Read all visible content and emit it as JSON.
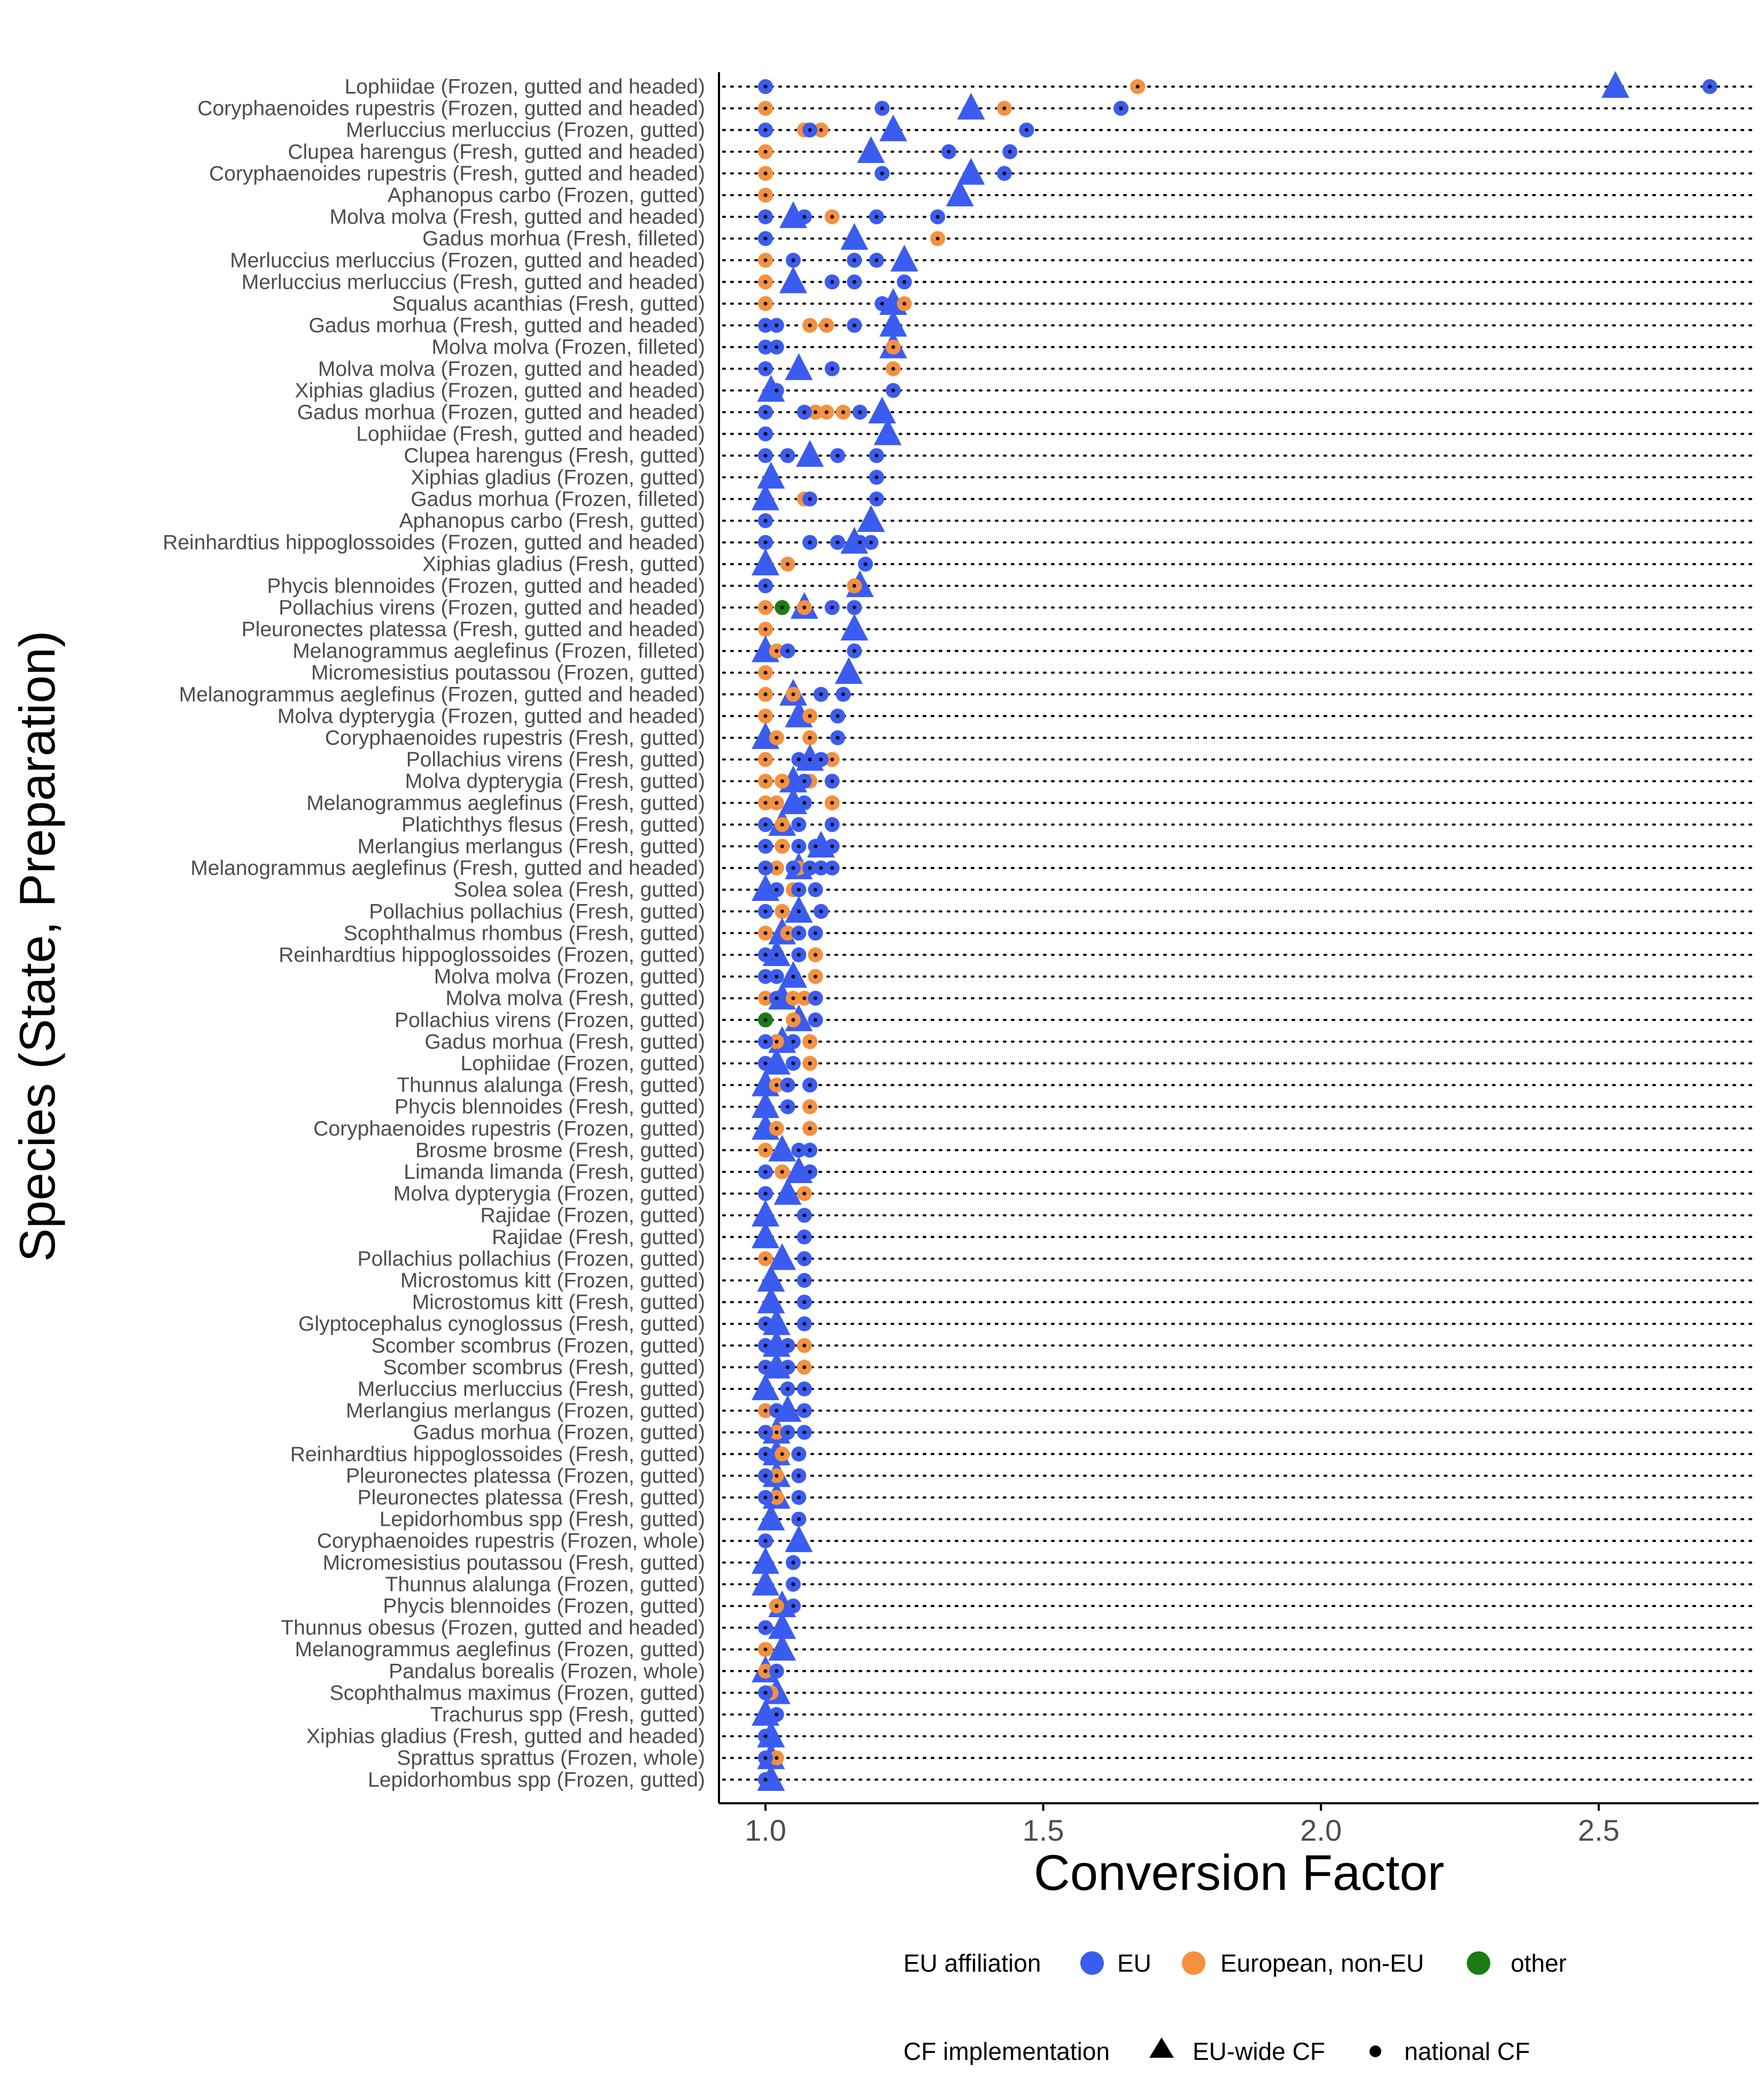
{
  "chart_data": {
    "type": "scatter",
    "xlabel": "Conversion Factor",
    "ylabel": "Species (State, Preparation)",
    "xlim": [
      0.92,
      2.78
    ],
    "x_ticks": [
      1.0,
      1.5,
      2.0,
      2.5
    ],
    "x_tick_labels": [
      "1.0",
      "1.5",
      "2.0",
      "2.5"
    ],
    "grid": "dotted horizontal line per category",
    "colors": {
      "EU": "#3b5cf0",
      "European, non-EU": "#f5913e",
      "other": "#1a7d10",
      "ink": "#000000"
    },
    "legend": {
      "position": "bottom",
      "color_title": "EU affiliation",
      "color_items": [
        "EU",
        "European, non-EU",
        "other"
      ],
      "shape_title": "CF implementation",
      "shape_items": [
        {
          "label": "EU-wide CF",
          "shape": "triangle"
        },
        {
          "label": "national CF",
          "shape": "dot"
        }
      ]
    },
    "categories": [
      {
        "label": "Lophiidae (Frozen, gutted and headed)",
        "eu": [
          1.0,
          2.7
        ],
        "noneu": [
          1.67
        ],
        "other": [],
        "euwide": [
          2.53
        ]
      },
      {
        "label": "Coryphaenoides rupestris (Frozen, gutted and headed)",
        "eu": [
          1.21,
          1.64
        ],
        "noneu": [
          1.0,
          1.43
        ],
        "other": [],
        "euwide": [
          1.37
        ]
      },
      {
        "label": "Merluccius merluccius (Frozen, gutted)",
        "eu": [
          1.0,
          1.08,
          1.47
        ],
        "noneu": [
          1.07,
          1.1
        ],
        "other": [],
        "euwide": [
          1.23
        ]
      },
      {
        "label": "Clupea harengus (Fresh, gutted and headed)",
        "eu": [
          1.33,
          1.44
        ],
        "noneu": [
          1.0
        ],
        "other": [],
        "euwide": [
          1.19
        ]
      },
      {
        "label": "Coryphaenoides rupestris (Fresh, gutted and headed)",
        "eu": [
          1.21,
          1.43
        ],
        "noneu": [
          1.0
        ],
        "other": [],
        "euwide": [
          1.37
        ]
      },
      {
        "label": "Aphanopus carbo (Frozen, gutted)",
        "eu": [],
        "noneu": [
          1.0
        ],
        "other": [],
        "euwide": [
          1.35
        ]
      },
      {
        "label": "Molva molva (Fresh, gutted and headed)",
        "eu": [
          1.0,
          1.07,
          1.2,
          1.31
        ],
        "noneu": [
          1.12
        ],
        "other": [],
        "euwide": [
          1.05
        ]
      },
      {
        "label": "Gadus morhua (Fresh, filleted)",
        "eu": [
          1.0
        ],
        "noneu": [
          1.31
        ],
        "other": [],
        "euwide": [
          1.16
        ]
      },
      {
        "label": "Merluccius merluccius (Frozen, gutted and headed)",
        "eu": [
          1.05,
          1.16,
          1.2
        ],
        "noneu": [
          1.0
        ],
        "other": [],
        "euwide": [
          1.25
        ]
      },
      {
        "label": "Merluccius merluccius (Fresh, gutted and headed)",
        "eu": [
          1.12,
          1.16,
          1.25
        ],
        "noneu": [
          1.0
        ],
        "other": [],
        "euwide": [
          1.05
        ]
      },
      {
        "label": "Squalus acanthias (Fresh, gutted)",
        "eu": [
          1.21
        ],
        "noneu": [
          1.0,
          1.25
        ],
        "other": [],
        "euwide": [
          1.23
        ]
      },
      {
        "label": "Gadus morhua (Fresh, gutted and headed)",
        "eu": [
          1.0,
          1.02,
          1.16
        ],
        "noneu": [
          1.08,
          1.11
        ],
        "other": [],
        "euwide": [
          1.23
        ]
      },
      {
        "label": "Molva molva (Frozen, filleted)",
        "eu": [
          1.0,
          1.02
        ],
        "noneu": [
          1.23
        ],
        "other": [],
        "euwide": [
          1.23
        ]
      },
      {
        "label": "Molva molva (Frozen, gutted and headed)",
        "eu": [
          1.0,
          1.12
        ],
        "noneu": [
          1.23
        ],
        "other": [],
        "euwide": [
          1.06
        ]
      },
      {
        "label": "Xiphias gladius (Frozen, gutted and headed)",
        "eu": [
          1.02,
          1.23
        ],
        "noneu": [],
        "other": [],
        "euwide": [
          1.01
        ]
      },
      {
        "label": "Gadus morhua (Frozen, gutted and headed)",
        "eu": [
          1.0,
          1.07,
          1.17
        ],
        "noneu": [
          1.09,
          1.11,
          1.14
        ],
        "other": [],
        "euwide": [
          1.21
        ]
      },
      {
        "label": "Lophiidae (Fresh, gutted and headed)",
        "eu": [
          1.0
        ],
        "noneu": [],
        "other": [],
        "euwide": [
          1.22
        ]
      },
      {
        "label": "Clupea harengus (Fresh, gutted)",
        "eu": [
          1.0,
          1.04,
          1.13,
          1.2
        ],
        "noneu": [],
        "other": [],
        "euwide": [
          1.08
        ]
      },
      {
        "label": "Xiphias gladius (Frozen, gutted)",
        "eu": [
          1.2
        ],
        "noneu": [],
        "other": [],
        "euwide": [
          1.01
        ]
      },
      {
        "label": "Gadus morhua (Frozen, filleted)",
        "eu": [
          1.08,
          1.2
        ],
        "noneu": [
          1.07
        ],
        "other": [],
        "euwide": [
          1.0
        ]
      },
      {
        "label": "Aphanopus carbo (Fresh, gutted)",
        "eu": [
          1.0
        ],
        "noneu": [],
        "other": [],
        "euwide": [
          1.19
        ]
      },
      {
        "label": "Reinhardtius hippoglossoides (Frozen, gutted and headed)",
        "eu": [
          1.0,
          1.08,
          1.13,
          1.17,
          1.19
        ],
        "noneu": [],
        "other": [],
        "euwide": [
          1.16
        ]
      },
      {
        "label": "Xiphias gladius (Fresh, gutted)",
        "eu": [
          1.18
        ],
        "noneu": [
          1.04
        ],
        "other": [],
        "euwide": [
          1.0
        ]
      },
      {
        "label": "Phycis blennoides (Frozen, gutted and headed)",
        "eu": [
          1.0
        ],
        "noneu": [
          1.16
        ],
        "other": [],
        "euwide": [
          1.17
        ]
      },
      {
        "label": "Pollachius virens (Frozen, gutted and headed)",
        "eu": [
          1.12,
          1.16
        ],
        "noneu": [
          1.0,
          1.07
        ],
        "other": [
          1.03
        ],
        "euwide": [
          1.07
        ]
      },
      {
        "label": "Pleuronectes platessa (Fresh, gutted and headed)",
        "eu": [],
        "noneu": [
          1.0
        ],
        "other": [],
        "euwide": [
          1.16
        ]
      },
      {
        "label": "Melanogrammus aeglefinus (Frozen, filleted)",
        "eu": [
          1.04,
          1.16
        ],
        "noneu": [
          1.02
        ],
        "other": [],
        "euwide": [
          1.0
        ]
      },
      {
        "label": "Micromesistius poutassou (Frozen, gutted)",
        "eu": [],
        "noneu": [
          1.0
        ],
        "other": [],
        "euwide": [
          1.15
        ]
      },
      {
        "label": "Melanogrammus aeglefinus (Frozen, gutted and headed)",
        "eu": [
          1.1,
          1.14
        ],
        "noneu": [
          1.0,
          1.05
        ],
        "other": [],
        "euwide": [
          1.05
        ]
      },
      {
        "label": "Molva dypterygia (Frozen, gutted and headed)",
        "eu": [
          1.13
        ],
        "noneu": [
          1.0,
          1.08
        ],
        "other": [],
        "euwide": [
          1.06
        ]
      },
      {
        "label": "Coryphaenoides rupestris (Fresh, gutted)",
        "eu": [
          1.13
        ],
        "noneu": [
          1.02,
          1.08
        ],
        "other": [],
        "euwide": [
          1.0
        ]
      },
      {
        "label": "Pollachius virens (Fresh, gutted)",
        "eu": [
          1.06,
          1.08,
          1.1
        ],
        "noneu": [
          1.0,
          1.12
        ],
        "other": [],
        "euwide": [
          1.08
        ]
      },
      {
        "label": "Molva dypterygia (Fresh, gutted)",
        "eu": [
          1.07,
          1.12
        ],
        "noneu": [
          1.0,
          1.03,
          1.08
        ],
        "other": [],
        "euwide": [
          1.05
        ]
      },
      {
        "label": "Melanogrammus aeglefinus (Fresh, gutted)",
        "eu": [
          1.07
        ],
        "noneu": [
          1.0,
          1.02,
          1.12
        ],
        "other": [],
        "euwide": [
          1.05
        ]
      },
      {
        "label": "Platichthys flesus (Fresh, gutted)",
        "eu": [
          1.0,
          1.06,
          1.12
        ],
        "noneu": [
          1.03
        ],
        "other": [],
        "euwide": [
          1.03
        ]
      },
      {
        "label": "Merlangius merlangus (Fresh, gutted)",
        "eu": [
          1.0,
          1.06,
          1.09,
          1.12
        ],
        "noneu": [
          1.03
        ],
        "other": [],
        "euwide": [
          1.1
        ]
      },
      {
        "label": "Melanogrammus aeglefinus (Fresh, gutted and headed)",
        "eu": [
          1.0,
          1.05,
          1.08,
          1.1,
          1.12
        ],
        "noneu": [
          1.02,
          1.06
        ],
        "other": [],
        "euwide": [
          1.06
        ]
      },
      {
        "label": "Solea solea (Fresh, gutted)",
        "eu": [
          1.02,
          1.06,
          1.09
        ],
        "noneu": [
          1.05
        ],
        "other": [],
        "euwide": [
          1.0
        ]
      },
      {
        "label": "Pollachius pollachius (Fresh, gutted)",
        "eu": [
          1.0,
          1.06,
          1.1
        ],
        "noneu": [
          1.03
        ],
        "other": [],
        "euwide": [
          1.06
        ]
      },
      {
        "label": "Scophthalmus rhombus (Fresh, gutted)",
        "eu": [
          1.06,
          1.09
        ],
        "noneu": [
          1.0,
          1.04
        ],
        "other": [],
        "euwide": [
          1.03
        ]
      },
      {
        "label": "Reinhardtius hippoglossoides (Frozen, gutted)",
        "eu": [
          1.0,
          1.02,
          1.06
        ],
        "noneu": [
          1.09
        ],
        "other": [],
        "euwide": [
          1.02
        ]
      },
      {
        "label": "Molva molva (Frozen, gutted)",
        "eu": [
          1.0,
          1.02,
          1.05
        ],
        "noneu": [
          1.09
        ],
        "other": [],
        "euwide": [
          1.05
        ]
      },
      {
        "label": "Molva molva (Fresh, gutted)",
        "eu": [
          1.02,
          1.09
        ],
        "noneu": [
          1.0,
          1.05,
          1.07
        ],
        "other": [],
        "euwide": [
          1.03
        ]
      },
      {
        "label": "Pollachius virens (Frozen, gutted)",
        "eu": [
          1.09
        ],
        "noneu": [
          1.05
        ],
        "other": [
          1.0
        ],
        "euwide": [
          1.06
        ]
      },
      {
        "label": "Gadus morhua (Fresh, gutted)",
        "eu": [
          1.0,
          1.05
        ],
        "noneu": [
          1.02,
          1.08
        ],
        "other": [],
        "euwide": [
          1.03
        ]
      },
      {
        "label": "Lophiidae (Frozen, gutted)",
        "eu": [
          1.0,
          1.05
        ],
        "noneu": [
          1.08
        ],
        "other": [],
        "euwide": [
          1.02
        ]
      },
      {
        "label": "Thunnus alalunga (Fresh, gutted)",
        "eu": [
          1.04,
          1.08
        ],
        "noneu": [
          1.02
        ],
        "other": [],
        "euwide": [
          1.0
        ]
      },
      {
        "label": "Phycis blennoides (Fresh, gutted)",
        "eu": [
          1.04
        ],
        "noneu": [
          1.08
        ],
        "other": [],
        "euwide": [
          1.0
        ]
      },
      {
        "label": "Coryphaenoides rupestris (Frozen, gutted)",
        "eu": [],
        "noneu": [
          1.02,
          1.08
        ],
        "other": [],
        "euwide": [
          1.0
        ]
      },
      {
        "label": "Brosme brosme (Fresh, gutted)",
        "eu": [
          1.06,
          1.08
        ],
        "noneu": [
          1.0
        ],
        "other": [],
        "euwide": [
          1.03
        ]
      },
      {
        "label": "Limanda limanda (Fresh, gutted)",
        "eu": [
          1.0,
          1.08
        ],
        "noneu": [
          1.03
        ],
        "other": [],
        "euwide": [
          1.06
        ]
      },
      {
        "label": "Molva dypterygia (Frozen, gutted)",
        "eu": [
          1.0
        ],
        "noneu": [
          1.07
        ],
        "other": [],
        "euwide": [
          1.04
        ]
      },
      {
        "label": "Rajidae (Frozen, gutted)",
        "eu": [
          1.07
        ],
        "noneu": [],
        "other": [],
        "euwide": [
          1.0
        ]
      },
      {
        "label": "Rajidae (Fresh, gutted)",
        "eu": [
          1.07
        ],
        "noneu": [],
        "other": [],
        "euwide": [
          1.0
        ]
      },
      {
        "label": "Pollachius pollachius (Frozen, gutted)",
        "eu": [
          1.07
        ],
        "noneu": [
          1.0
        ],
        "other": [],
        "euwide": [
          1.03
        ]
      },
      {
        "label": "Microstomus kitt (Frozen, gutted)",
        "eu": [
          1.07
        ],
        "noneu": [],
        "other": [],
        "euwide": [
          1.01
        ]
      },
      {
        "label": "Microstomus kitt (Fresh, gutted)",
        "eu": [
          1.07
        ],
        "noneu": [],
        "other": [],
        "euwide": [
          1.01
        ]
      },
      {
        "label": "Glyptocephalus cynoglossus (Fresh, gutted)",
        "eu": [
          1.0,
          1.07
        ],
        "noneu": [],
        "other": [],
        "euwide": [
          1.02
        ]
      },
      {
        "label": "Scomber scombrus (Frozen, gutted)",
        "eu": [
          1.0,
          1.04
        ],
        "noneu": [
          1.07
        ],
        "other": [],
        "euwide": [
          1.02
        ]
      },
      {
        "label": "Scomber scombrus (Fresh, gutted)",
        "eu": [
          1.0,
          1.04
        ],
        "noneu": [
          1.07
        ],
        "other": [],
        "euwide": [
          1.02
        ]
      },
      {
        "label": "Merluccius merluccius (Fresh, gutted)",
        "eu": [
          1.04,
          1.07
        ],
        "noneu": [],
        "other": [],
        "euwide": [
          1.0
        ]
      },
      {
        "label": "Merlangius merlangus (Frozen, gutted)",
        "eu": [
          1.02,
          1.07
        ],
        "noneu": [
          1.0
        ],
        "other": [],
        "euwide": [
          1.04
        ]
      },
      {
        "label": "Gadus morhua (Frozen, gutted)",
        "eu": [
          1.0,
          1.04,
          1.07
        ],
        "noneu": [
          1.02
        ],
        "other": [],
        "euwide": [
          1.02
        ]
      },
      {
        "label": "Reinhardtius hippoglossoides (Fresh, gutted)",
        "eu": [
          1.0,
          1.06
        ],
        "noneu": [
          1.03
        ],
        "other": [],
        "euwide": [
          1.02
        ]
      },
      {
        "label": "Pleuronectes platessa (Frozen, gutted)",
        "eu": [
          1.0,
          1.06
        ],
        "noneu": [
          1.02
        ],
        "other": [],
        "euwide": [
          1.02
        ]
      },
      {
        "label": "Pleuronectes platessa (Fresh, gutted)",
        "eu": [
          1.0,
          1.06
        ],
        "noneu": [
          1.02
        ],
        "other": [],
        "euwide": [
          1.02
        ]
      },
      {
        "label": "Lepidorhombus spp (Fresh, gutted)",
        "eu": [
          1.06
        ],
        "noneu": [],
        "other": [],
        "euwide": [
          1.01
        ]
      },
      {
        "label": "Coryphaenoides rupestris (Frozen, whole)",
        "eu": [
          1.0
        ],
        "noneu": [],
        "other": [],
        "euwide": [
          1.06
        ]
      },
      {
        "label": "Micromesistius poutassou (Fresh, gutted)",
        "eu": [
          1.05
        ],
        "noneu": [],
        "other": [],
        "euwide": [
          1.0
        ]
      },
      {
        "label": "Thunnus alalunga (Frozen, gutted)",
        "eu": [
          1.05
        ],
        "noneu": [],
        "other": [],
        "euwide": [
          1.0
        ]
      },
      {
        "label": "Phycis blennoides (Frozen, gutted)",
        "eu": [
          1.05
        ],
        "noneu": [
          1.02
        ],
        "other": [],
        "euwide": [
          1.03
        ]
      },
      {
        "label": "Thunnus obesus (Frozen, gutted and headed)",
        "eu": [
          1.0
        ],
        "noneu": [],
        "other": [],
        "euwide": [
          1.03
        ]
      },
      {
        "label": "Melanogrammus aeglefinus (Frozen, gutted)",
        "eu": [],
        "noneu": [
          1.0
        ],
        "other": [],
        "euwide": [
          1.03
        ]
      },
      {
        "label": "Pandalus borealis (Frozen, whole)",
        "eu": [
          1.02
        ],
        "noneu": [
          1.0
        ],
        "other": [],
        "euwide": [
          1.0
        ]
      },
      {
        "label": "Scophthalmus maximus (Frozen, gutted)",
        "eu": [
          1.0
        ],
        "noneu": [
          1.01
        ],
        "other": [],
        "euwide": [
          1.02
        ]
      },
      {
        "label": "Trachurus spp (Fresh, gutted)",
        "eu": [
          1.02
        ],
        "noneu": [],
        "other": [],
        "euwide": [
          1.0
        ]
      },
      {
        "label": "Xiphias gladius (Fresh, gutted and headed)",
        "eu": [
          1.0
        ],
        "noneu": [],
        "other": [],
        "euwide": [
          1.01
        ]
      },
      {
        "label": "Sprattus sprattus (Frozen, whole)",
        "eu": [
          1.0
        ],
        "noneu": [
          1.02
        ],
        "other": [],
        "euwide": [
          1.01
        ]
      },
      {
        "label": "Lepidorhombus spp (Frozen, gutted)",
        "eu": [
          1.0
        ],
        "noneu": [],
        "other": [],
        "euwide": [
          1.01
        ]
      }
    ]
  }
}
